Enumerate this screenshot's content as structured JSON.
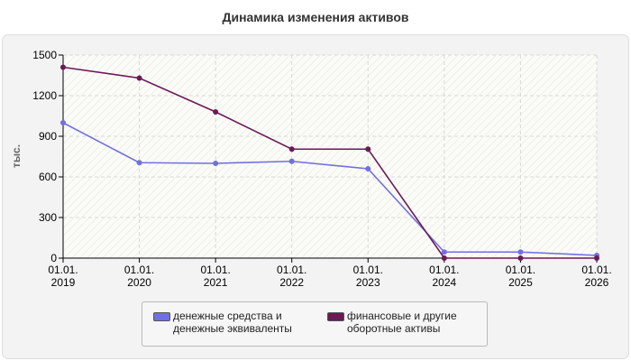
{
  "chart_data": {
    "type": "line",
    "title": "Динамика изменения активов",
    "ylabel": "тыс.",
    "xlabel": "",
    "x": [
      "01.01.\n2019",
      "01.01.\n2020",
      "01.01.\n2021",
      "01.01.\n2022",
      "01.01.\n2023",
      "01.01.\n2024",
      "01.01.\n2025",
      "01.01.\n2026"
    ],
    "ylim": [
      0,
      1500
    ],
    "yticks": [
      0,
      300,
      600,
      900,
      1200,
      1500
    ],
    "grid": true,
    "legend_position": "bottom",
    "series": [
      {
        "name": "денежные средства и денежные эквиваленты",
        "color": "#7070e0",
        "values": [
          1000,
          705,
          700,
          715,
          660,
          45,
          45,
          20
        ]
      },
      {
        "name": "финансовые и другие оборотные активы",
        "color": "#6b1a55",
        "values": [
          1410,
          1330,
          1080,
          805,
          805,
          0,
          0,
          0
        ]
      }
    ]
  }
}
